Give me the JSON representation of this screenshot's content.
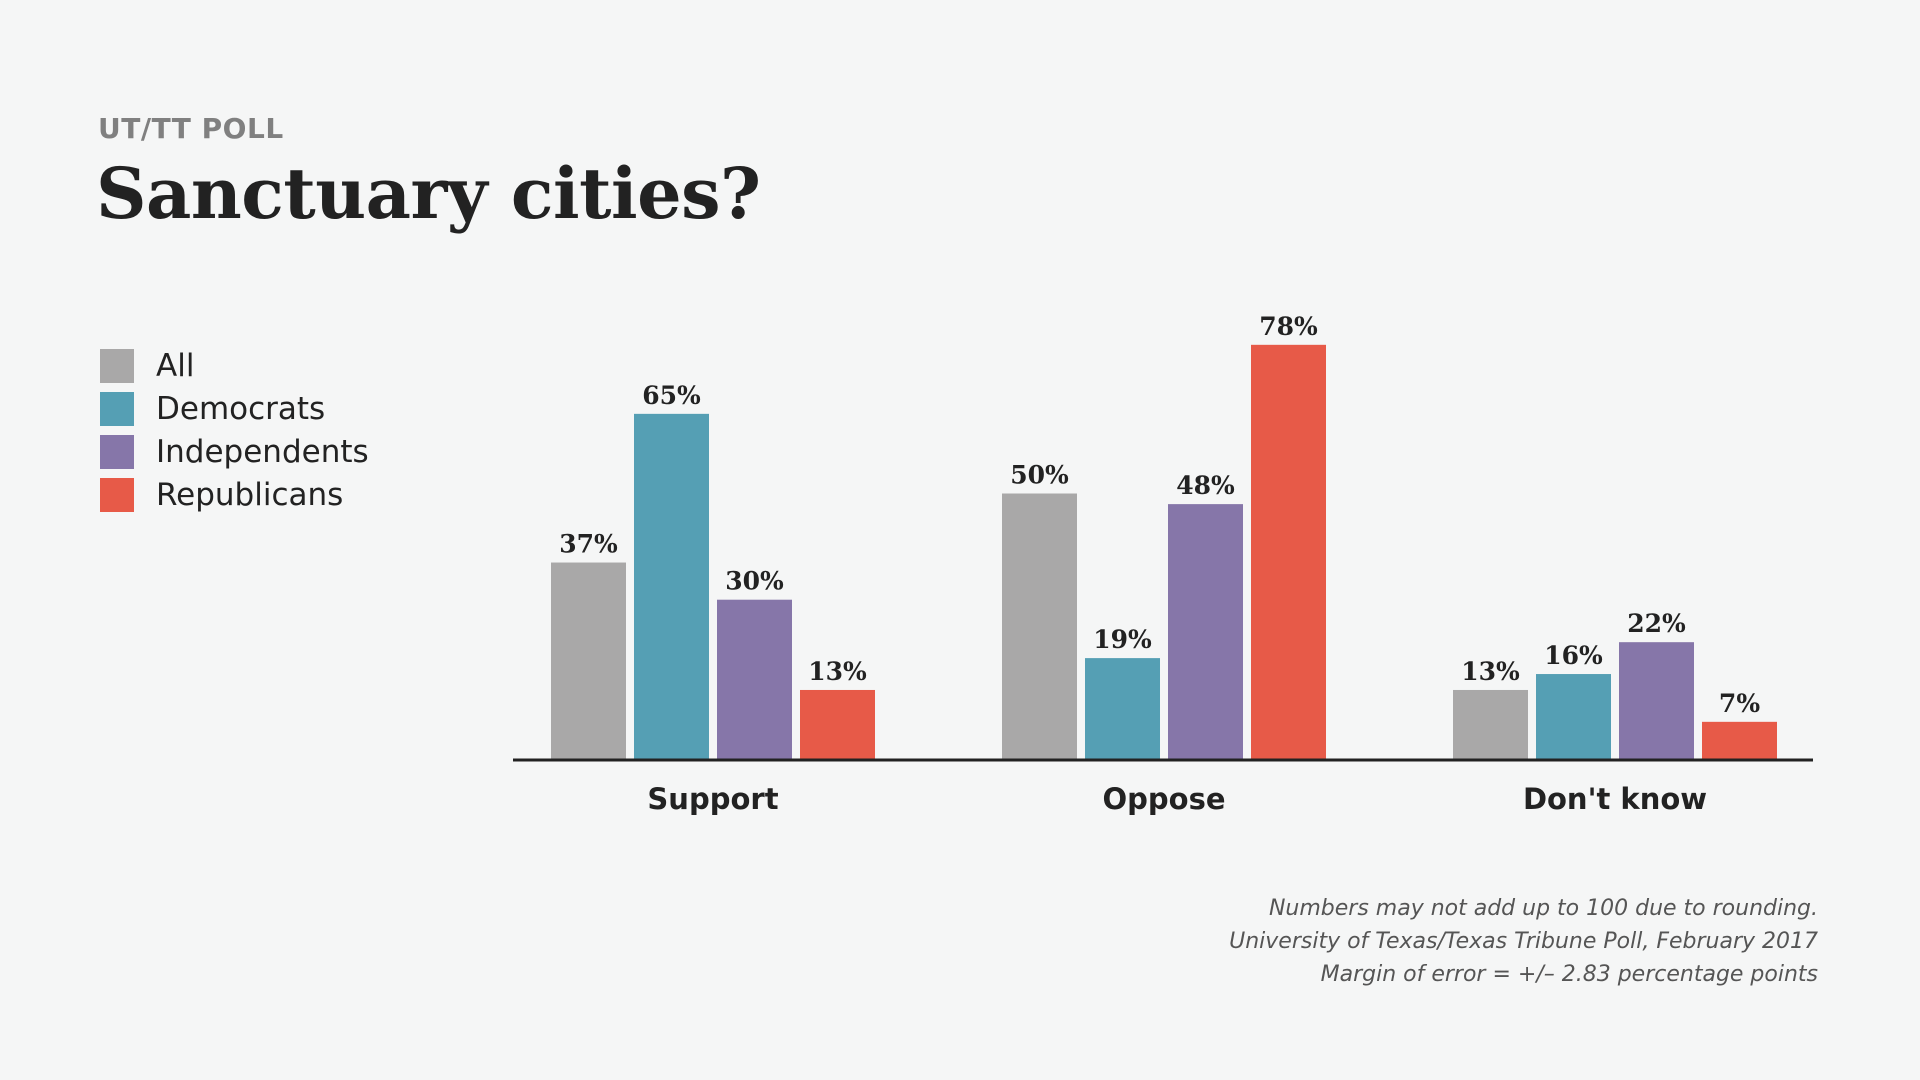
{
  "header": {
    "kicker": "UT/TT POLL",
    "title": "Sanctuary cities?"
  },
  "colors": {
    "All": "#a9a8a8",
    "Democrats": "#559fb4",
    "Independents": "#8676a9",
    "Republicans": "#e75a48",
    "axis": "#222222",
    "text": "#222222"
  },
  "chart_data": {
    "type": "bar",
    "title": "Sanctuary cities?",
    "xlabel": "",
    "ylabel": "",
    "ylim": [
      0,
      100
    ],
    "grid": false,
    "legend_position": "left",
    "categories": [
      "Support",
      "Oppose",
      "Don't know"
    ],
    "series": [
      {
        "name": "All",
        "color": "#a9a8a8",
        "values": [
          37,
          50,
          13
        ],
        "labels": [
          "37%",
          "50%",
          "13%"
        ]
      },
      {
        "name": "Democrats",
        "color": "#559fb4",
        "values": [
          65,
          19,
          16
        ],
        "labels": [
          "65%",
          "19%",
          "16%"
        ]
      },
      {
        "name": "Independents",
        "color": "#8676a9",
        "values": [
          30,
          48,
          22
        ],
        "labels": [
          "30%",
          "48%",
          "22%"
        ]
      },
      {
        "name": "Republicans",
        "color": "#e75a48",
        "values": [
          13,
          78,
          7
        ],
        "labels": [
          "13%",
          "78%",
          "7%"
        ]
      }
    ]
  },
  "notes": {
    "line1": "Numbers may not add up to 100 due to rounding.",
    "line2": "University of Texas/Texas Tribune Poll, February 2017",
    "line3": "Margin of error = +/– 2.83 percentage points"
  }
}
